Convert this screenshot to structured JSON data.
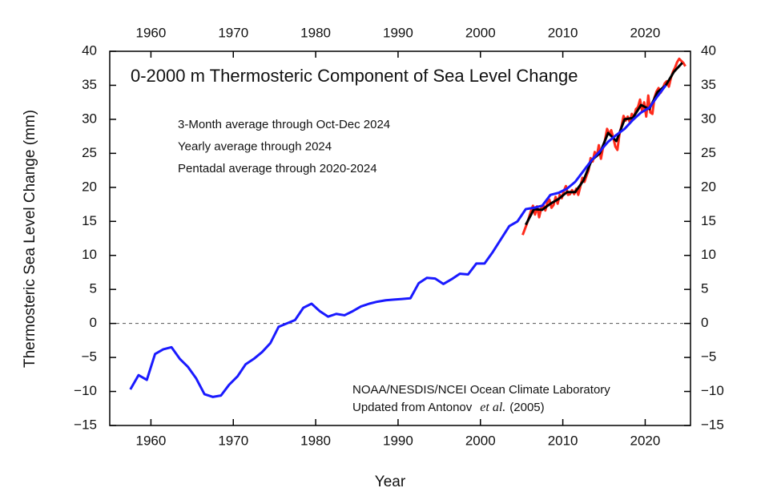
{
  "chart_data": {
    "type": "line",
    "title": "0-2000 m Thermosteric Component of Sea Level Change",
    "x_label": "Year",
    "y_label": "Thermosteric Sea Level Change (mm)",
    "source": [
      "NOAA/NESDIS/NCEI Ocean Climate Laboratory",
      [
        "Updated from Antonov",
        "et al.",
        "(2005)"
      ]
    ],
    "xlim": [
      1955,
      2025.5
    ],
    "ylim": [
      -15,
      40
    ],
    "xticks": [
      1960,
      1970,
      1980,
      1990,
      2000,
      2010,
      2020
    ],
    "yticks": [
      {
        "value": -15,
        "label": "−15"
      },
      {
        "value": -10,
        "label": "−10"
      },
      {
        "value": -5,
        "label": "−5"
      },
      0,
      5,
      10,
      15,
      20,
      25,
      30,
      35,
      40
    ],
    "reference_line": 0,
    "series": [
      {
        "name": "3-Month average through Oct-Dec 2024",
        "color": "#ff2a1a",
        "x": [
          2005.125,
          2005.375,
          2005.625,
          2005.875,
          2006.125,
          2006.375,
          2006.625,
          2006.875,
          2007.125,
          2007.375,
          2007.625,
          2007.875,
          2008.125,
          2008.375,
          2008.625,
          2008.875,
          2009.125,
          2009.375,
          2009.625,
          2009.875,
          2010.125,
          2010.375,
          2010.625,
          2010.875,
          2011.125,
          2011.375,
          2011.625,
          2011.875,
          2012.125,
          2012.375,
          2012.625,
          2012.875,
          2013.125,
          2013.375,
          2013.625,
          2013.875,
          2014.125,
          2014.375,
          2014.625,
          2014.875,
          2015.125,
          2015.375,
          2015.625,
          2015.875,
          2016.125,
          2016.375,
          2016.625,
          2016.875,
          2017.125,
          2017.375,
          2017.625,
          2017.875,
          2018.125,
          2018.375,
          2018.625,
          2018.875,
          2019.125,
          2019.375,
          2019.625,
          2019.875,
          2020.125,
          2020.375,
          2020.625,
          2020.875,
          2021.125,
          2021.375,
          2021.625,
          2021.875,
          2022.125,
          2022.375,
          2022.625,
          2022.875,
          2023.125,
          2023.375,
          2023.625,
          2023.875,
          2024.125,
          2024.375,
          2024.625,
          2024.875
        ],
        "values": [
          13.0,
          13.8,
          14.6,
          15.5,
          16.5,
          17.3,
          16.0,
          17.2,
          15.6,
          16.9,
          17.5,
          16.6,
          17.8,
          18.2,
          17.0,
          17.4,
          18.6,
          17.6,
          18.9,
          18.4,
          19.5,
          20.2,
          18.9,
          19.0,
          19.6,
          19.0,
          19.8,
          18.9,
          20.1,
          21.4,
          20.8,
          21.7,
          22.5,
          24.3,
          23.8,
          25.2,
          24.6,
          26.2,
          24.2,
          25.8,
          27.0,
          28.6,
          27.8,
          28.4,
          27.3,
          26.0,
          25.5,
          27.8,
          29.0,
          30.5,
          29.8,
          30.4,
          29.6,
          30.8,
          30.2,
          31.5,
          31.8,
          32.9,
          31.2,
          32.5,
          30.4,
          33.5,
          31.0,
          30.8,
          33.2,
          34.1,
          34.6,
          33.9,
          34.5,
          35.3,
          35.6,
          34.8,
          36.1,
          37.0,
          37.6,
          38.4,
          38.9,
          38.6,
          38.3,
          37.8
        ]
      },
      {
        "name": "Yearly average through 2024",
        "color": "#000000",
        "x": [
          2005.5,
          2006.5,
          2007.5,
          2008.5,
          2009.5,
          2010.5,
          2011.5,
          2012.5,
          2013.5,
          2014.5,
          2015.5,
          2016.5,
          2017.5,
          2018.5,
          2019.5,
          2020.5,
          2021.5,
          2022.5,
          2023.5,
          2024.5
        ],
        "values": [
          14.5,
          16.8,
          16.7,
          17.6,
          18.3,
          19.3,
          19.3,
          21.0,
          24.0,
          25.0,
          28.0,
          26.8,
          30.0,
          30.2,
          32.1,
          31.5,
          34.0,
          35.0,
          37.0,
          38.3
        ]
      },
      {
        "name": "Pentadal average through 2020-2024",
        "color": "#1a1aff",
        "x": [
          1957.5,
          1958.5,
          1959.5,
          1960.5,
          1961.5,
          1962.5,
          1963.5,
          1964.5,
          1965.5,
          1966.5,
          1967.5,
          1968.5,
          1969.5,
          1970.5,
          1971.5,
          1972.5,
          1973.5,
          1974.5,
          1975.5,
          1976.5,
          1977.5,
          1978.5,
          1979.5,
          1980.5,
          1981.5,
          1982.5,
          1983.5,
          1984.5,
          1985.5,
          1986.5,
          1987.5,
          1988.5,
          1989.5,
          1990.5,
          1991.5,
          1992.5,
          1993.5,
          1994.5,
          1995.5,
          1996.5,
          1997.5,
          1998.5,
          1999.5,
          2000.5,
          2001.5,
          2002.5,
          2003.5,
          2004.5,
          2005.5,
          2006.5,
          2007.5,
          2008.5,
          2009.5,
          2010.5,
          2011.5,
          2012.5,
          2013.5,
          2014.5,
          2015.5,
          2016.5,
          2017.5,
          2018.5,
          2019.5,
          2020.5,
          2021.5,
          2022.5
        ],
        "values": [
          -9.7,
          -7.6,
          -8.3,
          -4.5,
          -3.8,
          -3.5,
          -5.2,
          -6.4,
          -8.1,
          -10.4,
          -10.8,
          -10.6,
          -9.0,
          -7.8,
          -6.0,
          -5.2,
          -4.2,
          -2.9,
          -0.5,
          0.0,
          0.5,
          2.3,
          2.9,
          1.8,
          1.0,
          1.4,
          1.2,
          1.8,
          2.5,
          2.9,
          3.2,
          3.4,
          3.5,
          3.6,
          3.7,
          5.9,
          6.7,
          6.6,
          5.8,
          6.5,
          7.3,
          7.2,
          8.8,
          8.8,
          10.5,
          12.4,
          14.3,
          15.0,
          16.8,
          17.0,
          17.3,
          18.9,
          19.2,
          19.8,
          20.8,
          22.4,
          24.0,
          25.3,
          26.7,
          27.7,
          28.6,
          29.9,
          31.0,
          31.7,
          33.4,
          35.0
        ]
      }
    ]
  }
}
